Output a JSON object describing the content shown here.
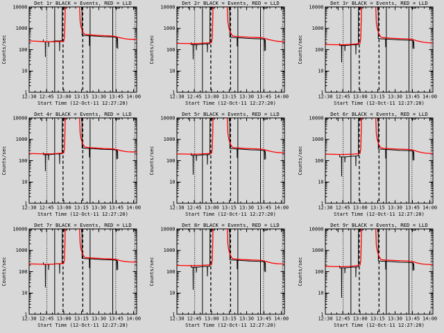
{
  "background_color": "#d8d8d8",
  "colors": {
    "events": "#000000",
    "lld": "#ff0000",
    "axis": "#000000"
  },
  "legend": {
    "black_means": "Events",
    "red_means": "LLD"
  },
  "axes": {
    "xlabel": "Start Time (12-Oct-11 12:27:20)",
    "ylabel": "Counts/sec",
    "xtick_labels": [
      "12:30",
      "12:45",
      "13:00",
      "13:15",
      "13:30",
      "13:45",
      "14:00"
    ],
    "xtick_minutes": [
      0,
      15,
      30,
      45,
      60,
      75,
      90
    ],
    "x_minor_step_minutes": 5,
    "x_range_minutes": [
      0,
      92.6
    ],
    "ytick_labels": [
      "1",
      "10",
      "100",
      "1000",
      "10000"
    ],
    "ylim": [
      1,
      10000
    ],
    "yscale": "log",
    "grid": "off"
  },
  "guide_lines": [
    {
      "t": 15.3,
      "style": "dotted"
    },
    {
      "t": 22.0,
      "style": "solid"
    },
    {
      "t": 29.2,
      "style": "dashed"
    },
    {
      "t": 46.2,
      "style": "dashed"
    },
    {
      "t": 52.5,
      "style": "solid"
    },
    {
      "t": 72.0,
      "style": "solid"
    },
    {
      "t": 74.6,
      "style": "dotted"
    },
    {
      "t": 91.0,
      "style": "dotted"
    }
  ],
  "offscale_value": 20000,
  "time_grids": {
    "lld_t": [
      0,
      6,
      12,
      16,
      20,
      24,
      28,
      29.8,
      30.5,
      30.9,
      31.15,
      43.2,
      43.9,
      44.8,
      45.8,
      46.8,
      48,
      52,
      57,
      62,
      67,
      71,
      74,
      76,
      79,
      82,
      85,
      88,
      92.6
    ],
    "events_baseline_t": [
      12.2,
      12.4,
      13.9,
      14.0,
      14.15,
      16.7,
      16.8,
      16.95,
      20,
      23,
      26.15,
      26.25,
      26.4,
      28.4,
      28.55
    ],
    "events_post_t": [
      45.45,
      45.6,
      48,
      51.85,
      51.95,
      52.1,
      56,
      60,
      64,
      68,
      71,
      74,
      75.3,
      75.4,
      75.55,
      76.2,
      76.35
    ]
  },
  "events_offscale_marks": [
    [
      [
        0.25,
        20000
      ],
      [
        0.45,
        8800
      ],
      [
        2.2,
        8800
      ],
      [
        2.4,
        20000
      ]
    ],
    [
      [
        10.85,
        20000
      ],
      [
        10.95,
        7000
      ],
      [
        11.1,
        20000
      ]
    ],
    [
      [
        30.45,
        20000
      ],
      [
        30.6,
        8800
      ],
      [
        32.4,
        8800
      ],
      [
        32.55,
        20000
      ]
    ],
    [
      [
        74.2,
        20000
      ],
      [
        74.35,
        8800
      ],
      [
        77.8,
        8800
      ],
      [
        77.95,
        20000
      ]
    ],
    [
      [
        90.3,
        20000
      ],
      [
        90.45,
        8800
      ],
      [
        92.6,
        8800
      ]
    ]
  ],
  "chart_data": [
    {
      "type": "line",
      "detector": "Det 1r",
      "title": "Det 1r BLACK = Events, RED = LLD",
      "series": [
        {
          "name": "Events",
          "color": "#000000",
          "baseline_v": [
            300,
            235,
            235,
            45,
            235,
            233,
            132,
            233,
            242,
            254,
            256,
            85,
            256,
            263,
            20000
          ],
          "post_v": [
            20000,
            470,
            456,
            446,
            150,
            446,
            432,
            418,
            404,
            400,
            395,
            385,
            376,
            120,
            371,
            329,
            110
          ]
        },
        {
          "name": "LLD",
          "color": "#ff0000",
          "v": [
            255,
            248,
            238,
            232,
            234,
            238,
            240,
            244,
            420,
            3000,
            20000,
            20000,
            2200,
            1100,
            780,
            600,
            520,
            495,
            470,
            455,
            442,
            432,
            415,
            390,
            352,
            326,
            310,
            305,
            298
          ]
        }
      ]
    },
    {
      "type": "line",
      "detector": "Det 2r",
      "title": "Det 2r BLACK = Events, RED = LLD",
      "series": [
        {
          "name": "Events",
          "color": "#000000",
          "baseline_v": [
            218,
            170,
            170,
            35,
            170,
            170,
            95,
            170,
            175,
            184,
            185,
            75,
            185,
            190,
            20000
          ],
          "post_v": [
            20000,
            380,
            369,
            361,
            140,
            361,
            350,
            338,
            327,
            323,
            319,
            312,
            304,
            85,
            300,
            266,
            90
          ]
        },
        {
          "name": "LLD",
          "color": "#ff0000",
          "v": [
            196,
            194,
            192,
            192,
            196,
            202,
            210,
            215,
            380,
            2800,
            20000,
            20000,
            2000,
            1000,
            700,
            540,
            430,
            410,
            395,
            382,
            372,
            365,
            352,
            330,
            296,
            272,
            252,
            242,
            232
          ]
        }
      ]
    },
    {
      "type": "line",
      "detector": "Det 3r",
      "title": "Det 3r BLACK = Events, RED = LLD",
      "series": [
        {
          "name": "Events",
          "color": "#000000",
          "baseline_v": [
            198,
            155,
            155,
            25,
            155,
            155,
            87,
            155,
            160,
            167,
            169,
            60,
            169,
            174,
            20000
          ],
          "post_v": [
            20000,
            330,
            320,
            314,
            130,
            314,
            304,
            294,
            284,
            281,
            277,
            271,
            264,
            110,
            261,
            231,
            110
          ]
        },
        {
          "name": "LLD",
          "color": "#ff0000",
          "v": [
            172,
            170,
            168,
            169,
            173,
            180,
            190,
            196,
            340,
            2600,
            20000,
            20000,
            1800,
            900,
            620,
            470,
            375,
            355,
            340,
            330,
            322,
            316,
            306,
            288,
            258,
            236,
            220,
            212,
            205
          ]
        }
      ]
    },
    {
      "type": "line",
      "detector": "Det 4r",
      "title": "Det 4r BLACK = Events, RED = LLD",
      "series": [
        {
          "name": "Events",
          "color": "#000000",
          "baseline_v": [
            243,
            190,
            190,
            32,
            190,
            190,
            106,
            190,
            196,
            205,
            207,
            70,
            207,
            213,
            20000
          ],
          "post_v": [
            20000,
            390,
            378,
            371,
            140,
            371,
            359,
            347,
            335,
            332,
            328,
            320,
            312,
            115,
            308,
            273,
            120
          ]
        },
        {
          "name": "LLD",
          "color": "#ff0000",
          "v": [
            216,
            212,
            208,
            207,
            210,
            216,
            224,
            228,
            390,
            2800,
            20000,
            20000,
            2000,
            1000,
            700,
            530,
            430,
            408,
            390,
            376,
            364,
            356,
            344,
            324,
            292,
            272,
            260,
            256,
            252
          ]
        }
      ]
    },
    {
      "type": "line",
      "detector": "Det 5r",
      "title": "Det 5r BLACK = Events, RED = LLD",
      "series": [
        {
          "name": "Events",
          "color": "#000000",
          "baseline_v": [
            224,
            175,
            175,
            22,
            175,
            175,
            98,
            175,
            180,
            189,
            191,
            65,
            191,
            196,
            20000
          ],
          "post_v": [
            20000,
            370,
            359,
            352,
            135,
            352,
            340,
            329,
            318,
            315,
            311,
            303,
            296,
            110,
            292,
            259,
            115
          ]
        },
        {
          "name": "LLD",
          "color": "#ff0000",
          "v": [
            206,
            204,
            200,
            200,
            204,
            210,
            218,
            222,
            380,
            2700,
            20000,
            20000,
            1900,
            950,
            660,
            500,
            415,
            395,
            380,
            368,
            358,
            350,
            340,
            318,
            286,
            262,
            246,
            238,
            232
          ]
        }
      ]
    },
    {
      "type": "line",
      "detector": "Det 6r",
      "title": "Det 6r BLACK = Events, RED = LLD",
      "series": [
        {
          "name": "Events",
          "color": "#000000",
          "baseline_v": [
            192,
            150,
            150,
            18,
            150,
            150,
            84,
            150,
            155,
            162,
            164,
            55,
            164,
            168,
            20000
          ],
          "post_v": [
            20000,
            350,
            340,
            333,
            125,
            333,
            322,
            312,
            301,
            298,
            294,
            287,
            280,
            100,
            277,
            245,
            105
          ]
        },
        {
          "name": "LLD",
          "color": "#ff0000",
          "v": [
            200,
            198,
            194,
            194,
            197,
            202,
            210,
            214,
            360,
            2600,
            20000,
            20000,
            1800,
            900,
            620,
            470,
            390,
            372,
            358,
            348,
            340,
            334,
            324,
            304,
            270,
            246,
            228,
            220,
            214
          ]
        }
      ]
    },
    {
      "type": "line",
      "detector": "Det 7r",
      "title": "Det 7r BLACK = Events, RED = LLD",
      "series": [
        {
          "name": "Events",
          "color": "#000000",
          "baseline_v": [
            275,
            215,
            215,
            18,
            215,
            215,
            120,
            215,
            221,
            232,
            234,
            80,
            234,
            241,
            20000
          ],
          "post_v": [
            20000,
            420,
            407,
            399,
            145,
            399,
            386,
            374,
            361,
            357,
            353,
            344,
            336,
            115,
            332,
            294,
            120
          ]
        },
        {
          "name": "LLD",
          "color": "#ff0000",
          "v": [
            230,
            226,
            221,
            220,
            224,
            230,
            238,
            242,
            400,
            2900,
            20000,
            20000,
            2100,
            1050,
            740,
            560,
            460,
            440,
            424,
            410,
            398,
            390,
            378,
            356,
            322,
            300,
            288,
            283,
            278
          ]
        }
      ]
    },
    {
      "type": "line",
      "detector": "Det 8r",
      "title": "Det 8r BLACK = Events, RED = LLD",
      "series": [
        {
          "name": "Events",
          "color": "#000000",
          "baseline_v": [
            205,
            160,
            160,
            14,
            160,
            160,
            90,
            160,
            165,
            173,
            174,
            60,
            174,
            179,
            20000
          ],
          "post_v": [
            20000,
            360,
            349,
            342,
            130,
            342,
            331,
            320,
            310,
            306,
            302,
            295,
            288,
            100,
            284,
            252,
            95
          ]
        },
        {
          "name": "LLD",
          "color": "#ff0000",
          "v": [
            196,
            193,
            190,
            190,
            194,
            200,
            208,
            212,
            370,
            2700,
            20000,
            20000,
            1900,
            950,
            650,
            490,
            400,
            382,
            368,
            356,
            347,
            340,
            330,
            308,
            276,
            252,
            238,
            232,
            228
          ]
        }
      ]
    },
    {
      "type": "line",
      "detector": "Det 9r",
      "title": "Det 9r BLACK = Events, RED = LLD",
      "series": [
        {
          "name": "Events",
          "color": "#000000",
          "baseline_v": [
            192,
            150,
            150,
            6,
            150,
            150,
            84,
            150,
            155,
            162,
            164,
            55,
            164,
            168,
            20000
          ],
          "post_v": [
            20000,
            320,
            310,
            304,
            125,
            304,
            294,
            285,
            275,
            272,
            269,
            262,
            256,
            110,
            253,
            224,
            115
          ]
        },
        {
          "name": "LLD",
          "color": "#ff0000",
          "v": [
            176,
            174,
            171,
            171,
            175,
            182,
            192,
            197,
            340,
            2500,
            20000,
            20000,
            1700,
            880,
            600,
            450,
            365,
            348,
            336,
            327,
            320,
            314,
            305,
            286,
            256,
            234,
            222,
            217,
            212
          ]
        }
      ]
    }
  ]
}
